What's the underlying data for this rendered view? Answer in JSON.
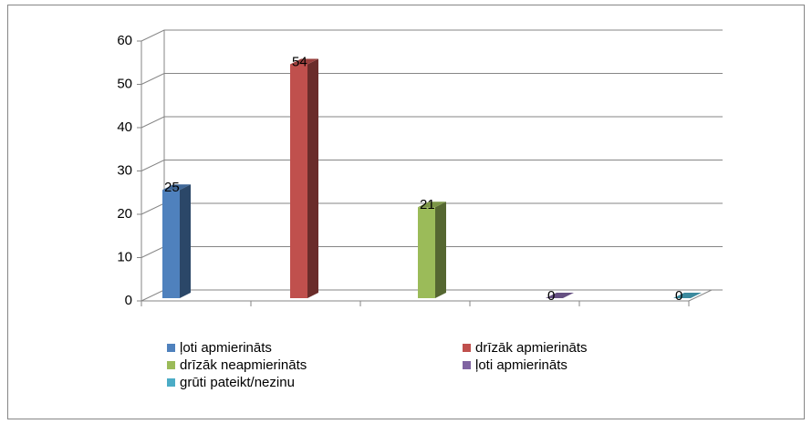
{
  "chart_data": {
    "type": "bar",
    "series": [
      {
        "name": "ļoti apmierināts",
        "color": "#4f81bd",
        "values": [
          25
        ]
      },
      {
        "name": "drīzāk apmierināts",
        "color": "#c0504d",
        "values": [
          54
        ]
      },
      {
        "name": "drīzāk neapmierināts",
        "color": "#9bbb59",
        "values": [
          21
        ]
      },
      {
        "name": "ļoti apmierināts",
        "color": "#8064a2",
        "values": [
          0
        ]
      },
      {
        "name": "grūti pateikt/nezinu",
        "color": "#4bacc6",
        "values": [
          0
        ]
      }
    ],
    "ylim": [
      0,
      60
    ],
    "yticks": [
      0,
      10,
      20,
      30,
      40,
      50,
      60
    ],
    "grid": true,
    "legend": "bottom"
  }
}
